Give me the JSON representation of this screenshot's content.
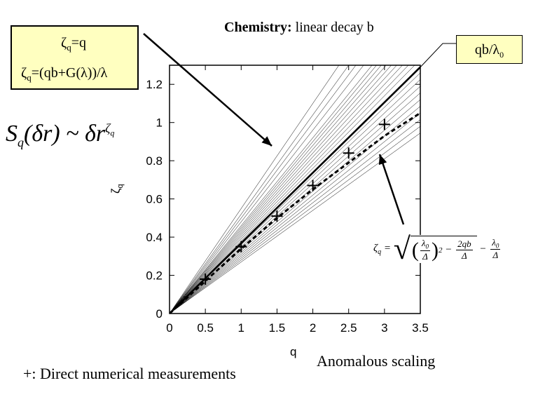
{
  "chart_data": {
    "type": "line",
    "title_bold": "Chemistry:",
    "title_rest": " linear decay b",
    "xlabel": "q",
    "ylabel": "ζq",
    "xlim": [
      0,
      3.5
    ],
    "ylim": [
      0,
      1.3
    ],
    "x_ticks": [
      "0",
      "0.5",
      "1",
      "1.5",
      "2",
      "2.5",
      "3",
      "3.5"
    ],
    "y_ticks": [
      "0",
      "0.2",
      "0.4",
      "0.6",
      "0.8",
      "1",
      "1.2"
    ],
    "series": [
      {
        "label": "qb/λ0",
        "style": "solid",
        "points": [
          [
            0,
            0
          ],
          [
            3.5,
            1.29
          ]
        ]
      },
      {
        "style": "dashed",
        "points": [
          [
            0,
            0
          ],
          [
            0.5,
            0.17
          ],
          [
            1,
            0.34
          ],
          [
            1.5,
            0.5
          ],
          [
            2,
            0.65
          ],
          [
            2.5,
            0.79
          ],
          [
            3,
            0.93
          ],
          [
            3.5,
            1.05
          ]
        ]
      },
      {
        "style": "thin-fan",
        "slopes": [
          0.27,
          0.28,
          0.29,
          0.3,
          0.31,
          0.32,
          0.33,
          0.34,
          0.35,
          0.36,
          0.37,
          0.38,
          0.39,
          0.4,
          0.41,
          0.42,
          0.43,
          0.44,
          0.45,
          0.46,
          0.48,
          0.5,
          0.52,
          0.55
        ]
      }
    ],
    "measurements": {
      "marker": "+",
      "x": [
        0.5,
        1,
        1.5,
        2,
        2.5,
        3
      ],
      "y": [
        0.18,
        0.35,
        0.51,
        0.67,
        0.84,
        0.99
      ]
    },
    "grid": false
  },
  "legend": {
    "line1": "ζq=q",
    "line2": "ζq=(qb+G(λ))/λ"
  },
  "callout": "qb/λ0",
  "formula_sq": "Sq(δr) ~ δr^ζq",
  "formula_zeta": "ζq = √((λ0/Δ)² − 2qb/Δ) − λ0/Δ",
  "footnote": "+: Direct numerical measurements",
  "annotation": "Anomalous scaling"
}
